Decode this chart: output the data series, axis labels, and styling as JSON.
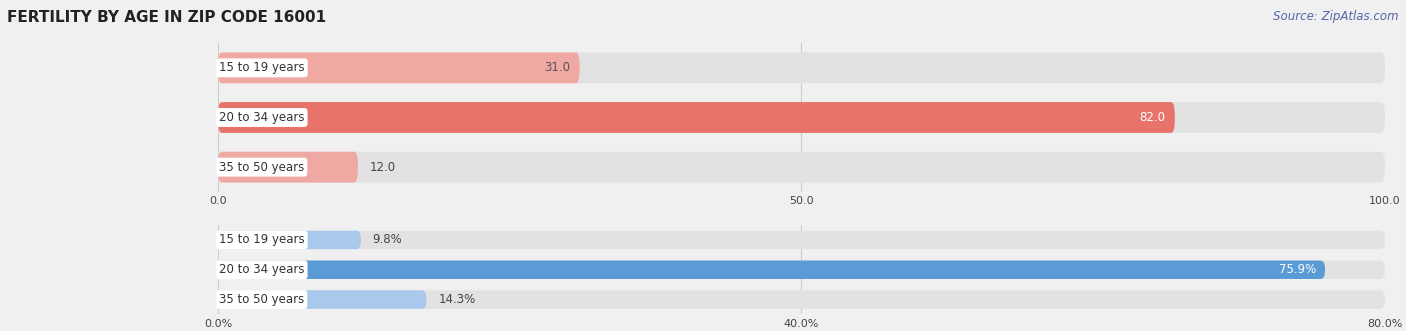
{
  "title": "FERTILITY BY AGE IN ZIP CODE 16001",
  "source": "Source: ZipAtlas.com",
  "top_chart": {
    "categories": [
      "15 to 19 years",
      "20 to 34 years",
      "35 to 50 years"
    ],
    "values": [
      31.0,
      82.0,
      12.0
    ],
    "xlim": [
      0,
      100
    ],
    "xticks": [
      0.0,
      50.0,
      100.0
    ],
    "xtick_labels": [
      "0.0",
      "50.0",
      "100.0"
    ],
    "bar_colors": [
      "#F0A8A2",
      "#E8736A",
      "#F0A8A2"
    ],
    "value_labels": [
      "31.0",
      "82.0",
      "12.0"
    ],
    "value_label_colors": [
      "#555555",
      "#ffffff",
      "#555555"
    ]
  },
  "bottom_chart": {
    "categories": [
      "15 to 19 years",
      "20 to 34 years",
      "35 to 50 years"
    ],
    "values": [
      9.8,
      75.9,
      14.3
    ],
    "xlim": [
      0,
      80
    ],
    "xticks": [
      0.0,
      40.0,
      80.0
    ],
    "xtick_labels": [
      "0.0%",
      "40.0%",
      "80.0%"
    ],
    "bar_colors": [
      "#A8C8EC",
      "#5B9BD5",
      "#A8C8EC"
    ],
    "value_labels": [
      "9.8%",
      "75.9%",
      "14.3%"
    ],
    "value_label_colors": [
      "#555555",
      "#ffffff",
      "#555555"
    ]
  },
  "bg_color": "#f0f0f0",
  "bar_bg_color": "#e2e2e2",
  "title_fontsize": 11,
  "label_fontsize": 8.5,
  "tick_fontsize": 8,
  "source_fontsize": 8.5,
  "bar_height": 0.62,
  "rounding": 0.31
}
